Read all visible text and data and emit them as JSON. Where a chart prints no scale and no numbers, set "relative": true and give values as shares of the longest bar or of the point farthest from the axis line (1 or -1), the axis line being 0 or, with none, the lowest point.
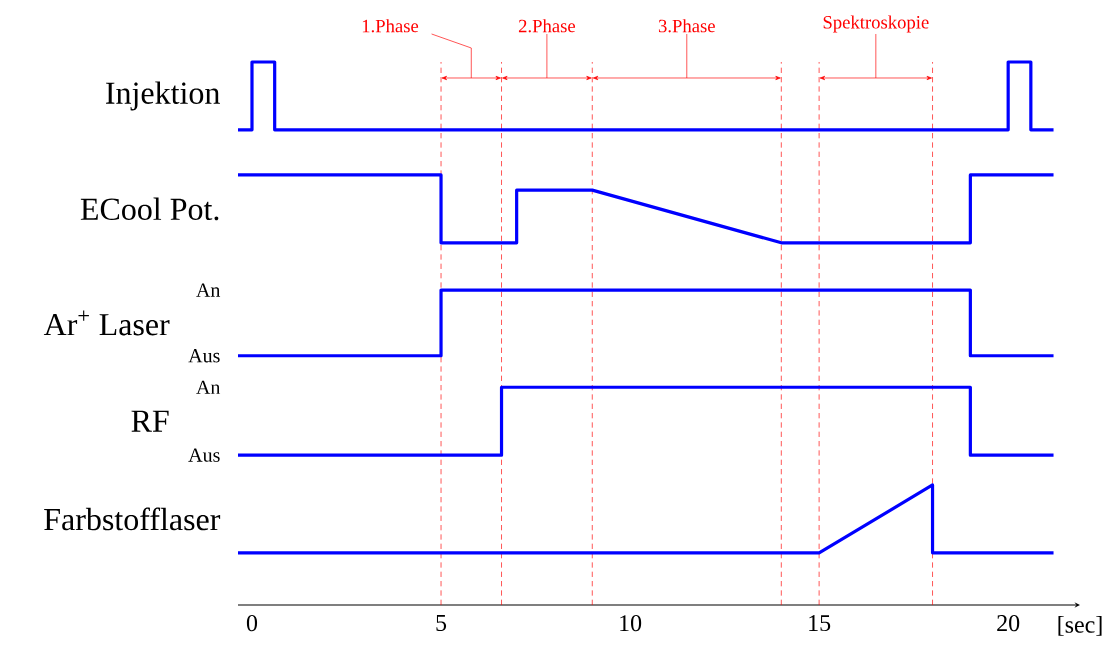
{
  "chart_data": {
    "type": "line",
    "relative": true,
    "xlim": [
      -0.37,
      21.9
    ],
    "xticks": [
      0,
      5,
      10,
      15,
      20
    ],
    "xlabel": "[sec]",
    "tick_labels": "x",
    "series": [
      {
        "name": "Injektion",
        "color": "#0000ff",
        "x": [
          -0.37,
          0,
          0,
          0.6,
          0.6,
          20,
          20,
          20.6,
          20.6,
          21.2
        ],
        "values": [
          0.875,
          0.875,
          1,
          1,
          0.875,
          0.875,
          1,
          1,
          0.875,
          0.875
        ]
      },
      {
        "name": "ECool Pot.",
        "color": "#0000ff",
        "x": [
          -0.37,
          5,
          5,
          7,
          7,
          9,
          14,
          19,
          19,
          21.2
        ],
        "values": [
          0.792,
          0.792,
          0.667,
          0.667,
          0.764,
          0.764,
          0.667,
          0.667,
          0.792,
          0.792
        ]
      },
      {
        "name": "Ar$^{+}$ Laser",
        "color": "#0000ff",
        "x": [
          -0.37,
          5,
          5,
          19,
          19,
          21.2
        ],
        "values": [
          0.459,
          0.459,
          0.58,
          0.58,
          0.459,
          0.459
        ]
      },
      {
        "name": "RF",
        "color": "#0000ff",
        "x": [
          -0.37,
          6.6,
          6.6,
          19,
          19,
          21.2
        ],
        "values": [
          0.276,
          0.276,
          0.401,
          0.401,
          0.276,
          0.276
        ]
      },
      {
        "name": "Farbstofflaser",
        "color": "#0000ff",
        "x": [
          -0.37,
          15,
          18,
          18,
          21.2
        ],
        "values": [
          0.096,
          0.096,
          0.221,
          0.096,
          0.096
        ]
      }
    ],
    "annotations": [
      "1.Phase",
      "2.Phase",
      "3.Phase",
      "Spektroskopie",
      "An",
      "Aus",
      "An",
      "Aus"
    ],
    "ref_lines": [
      {
        "axis": "x",
        "value": 5,
        "color": "#ff0000",
        "line_style": "dashed"
      },
      {
        "axis": "x",
        "value": 6.6,
        "color": "#ff0000",
        "line_style": "dashed"
      },
      {
        "axis": "x",
        "value": 9,
        "color": "#ff0000",
        "line_style": "dashed"
      },
      {
        "axis": "x",
        "value": 14,
        "color": "#ff0000",
        "line_style": "dashed"
      },
      {
        "axis": "x",
        "value": 15,
        "color": "#ff0000",
        "line_style": "dashed"
      },
      {
        "axis": "x",
        "value": 18,
        "color": "#ff0000",
        "line_style": "dashed"
      }
    ]
  }
}
